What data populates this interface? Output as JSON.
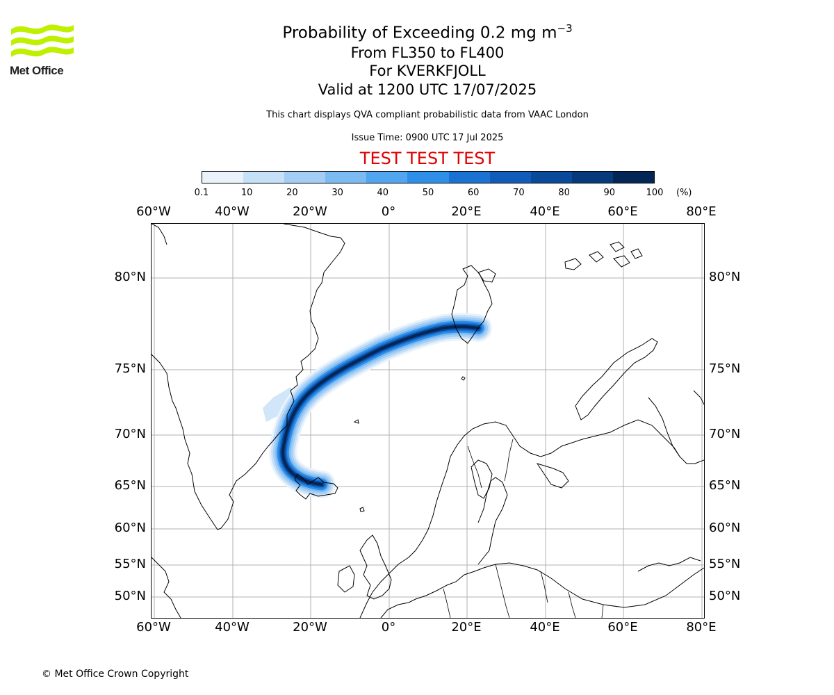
{
  "logo": {
    "text": "Met Office",
    "color": "#bff000"
  },
  "title": {
    "line1_main": "Probability of Exceeding 0.2 mg m",
    "line1_sup": "−3",
    "line2": "From FL350 to FL400",
    "line3": "For KVERKFJOLL",
    "line4": "Valid at 1200 UTC 17/07/2025"
  },
  "subtitle": "This chart displays QVA compliant probabilistic data from VAAC London",
  "issue_time": "Issue Time: 0900 UTC 17 Jul 2025",
  "test_banner": "TEST TEST TEST",
  "colorbar": {
    "ticks": [
      "0.1",
      "10",
      "20",
      "30",
      "40",
      "50",
      "60",
      "70",
      "80",
      "90",
      "100"
    ],
    "unit": "(%)",
    "colors": [
      "#eaf3fc",
      "#c6e0f8",
      "#a3cdf5",
      "#7cbaf2",
      "#52a5ef",
      "#2e8fe9",
      "#1a72d2",
      "#105cb8",
      "#0a4a9a",
      "#073a7a",
      "#042656"
    ]
  },
  "map": {
    "lon_labels": [
      "60°W",
      "40°W",
      "20°W",
      "0°",
      "20°E",
      "40°E",
      "60°E",
      "80°E"
    ],
    "lat_labels": [
      "80°N",
      "75°N",
      "70°N",
      "65°N",
      "60°N",
      "55°N",
      "50°N"
    ],
    "grid_color": "#b0b0b0",
    "coast_color": "#000000"
  },
  "copyright": "© Met Office Crown Copyright"
}
